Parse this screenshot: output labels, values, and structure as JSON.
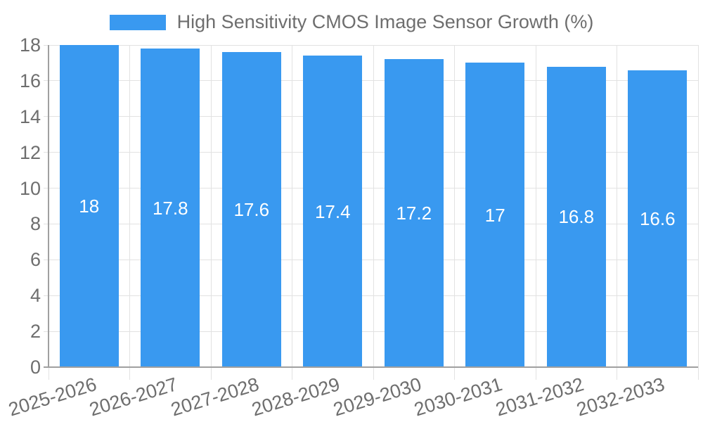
{
  "legend": {
    "label": "High Sensitivity CMOS Image Sensor Growth (%)"
  },
  "chart_data": {
    "type": "bar",
    "title": "",
    "xlabel": "",
    "ylabel": "",
    "categories": [
      "2025-2026",
      "2026-2027",
      "2027-2028",
      "2028-2029",
      "2029-2030",
      "2030-2031",
      "2031-2032",
      "2032-2033"
    ],
    "values": [
      18,
      17.8,
      17.6,
      17.4,
      17.2,
      17,
      16.8,
      16.6
    ],
    "value_labels": [
      "18",
      "17.8",
      "17.6",
      "17.4",
      "17.2",
      "17",
      "16.8",
      "16.6"
    ],
    "series_name": "High Sensitivity CMOS Image Sensor Growth (%)",
    "ylim": [
      0,
      18
    ],
    "ytick_step": 2,
    "ytick_labels": [
      "0",
      "2",
      "4",
      "6",
      "8",
      "10",
      "12",
      "14",
      "16",
      "18"
    ],
    "legend_position": "top",
    "grid": true,
    "value_labels_inside_bars": true,
    "xlabel_rotation_deg": -17,
    "colors": {
      "bar": "#3999F0",
      "grid": "#E2E2E2",
      "axis": "#A0A0A0",
      "tick_text": "#6E6E6E",
      "value_text": "#FFFFFF",
      "background": "#FFFFFF"
    }
  }
}
